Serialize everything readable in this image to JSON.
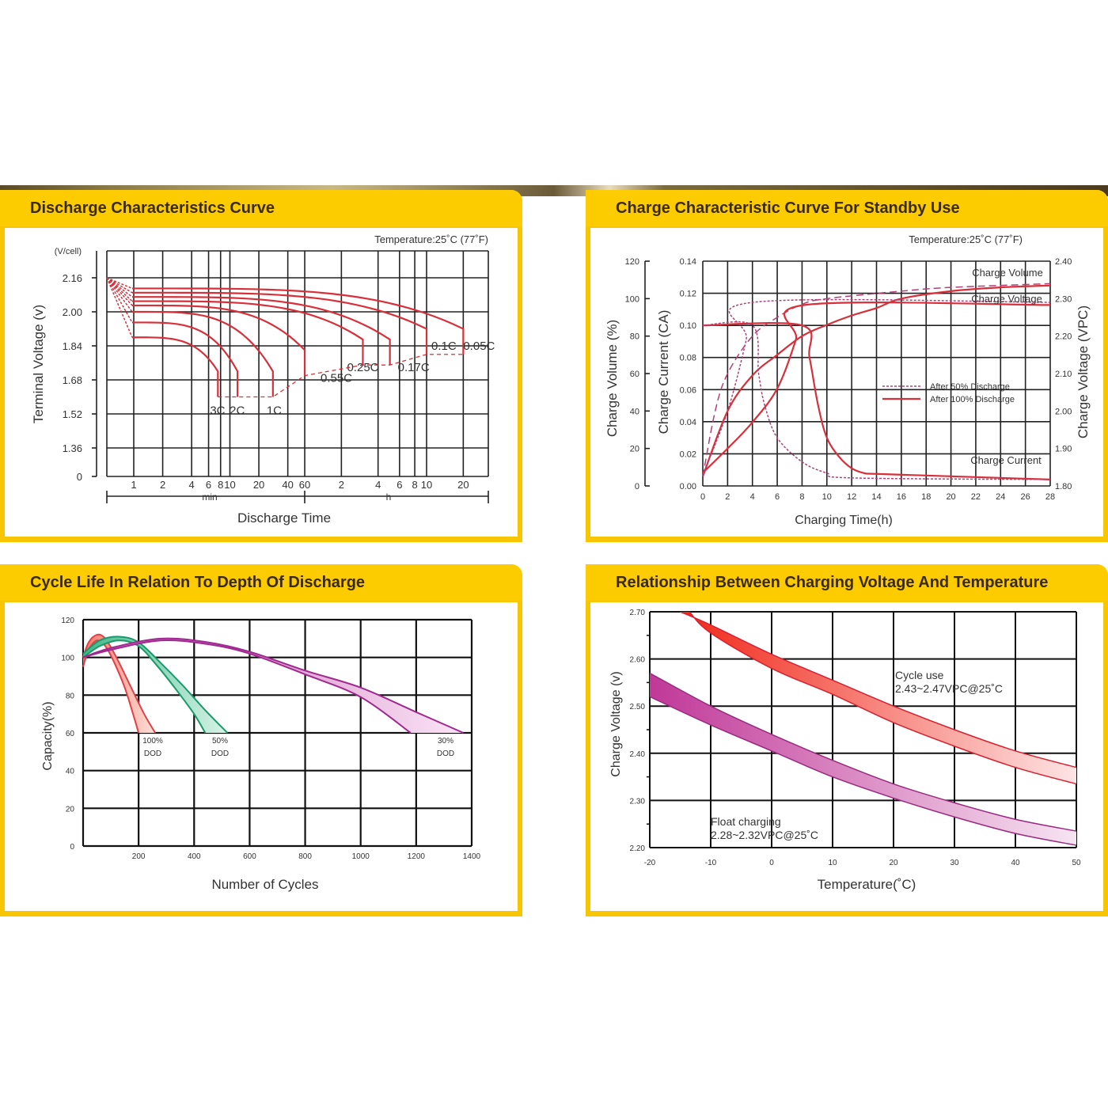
{
  "panels": [
    {
      "title": "Discharge Characteristics Curve"
    },
    {
      "title": "Charge Characteristic Curve For Standby Use"
    },
    {
      "title": "Cycle Life In Relation To Depth Of Discharge"
    },
    {
      "title": "Relationship Between Charging Voltage And Temperature"
    }
  ],
  "chart_data": [
    {
      "type": "line",
      "title": "Discharge Characteristics Curve",
      "annotation": "Temperature:25˚C (77˚F)",
      "ylabel": "Terminal  Voltage  (v)",
      "yunit": "(V/cell)",
      "xlabel": "Discharge  Time",
      "x_groups": [
        "min",
        "h"
      ],
      "x_ticks_min": [
        1,
        2,
        4,
        6,
        8,
        10,
        20,
        40,
        60
      ],
      "x_ticks_h": [
        2,
        4,
        6,
        8,
        10,
        20
      ],
      "y_ticks": [
        2.16,
        2.0,
        1.84,
        1.68,
        1.52,
        1.36,
        0
      ],
      "initial_voltage": 2.16,
      "series": [
        {
          "name": "3C",
          "start_v": 1.88,
          "end_min": 7.5,
          "end_v": 1.6
        },
        {
          "name": "2C",
          "start_v": 1.95,
          "end_min": 12,
          "end_v": 1.6
        },
        {
          "name": "1C",
          "start_v": 2.0,
          "end_min": 28,
          "end_v": 1.6
        },
        {
          "name": "0.55C",
          "start_v": 2.03,
          "end_min": 60,
          "end_v": 1.7
        },
        {
          "name": "0.25C",
          "start_v": 2.05,
          "end_min": 180,
          "end_v": 1.75
        },
        {
          "name": "0.17C",
          "start_v": 2.07,
          "end_min": 300,
          "end_v": 1.75
        },
        {
          "name": "0.1C",
          "start_v": 2.09,
          "end_min": 600,
          "end_v": 1.8
        },
        {
          "name": "0.05C",
          "start_v": 2.11,
          "end_min": 1200,
          "end_v": 1.8
        }
      ],
      "color": "#d8303a"
    },
    {
      "type": "line",
      "title": "Charge Characteristic Curve For Standby Use",
      "annotation": "Temperature:25˚C (77˚F)",
      "xlabel": "Charging Time(h)",
      "ylabel_volume": "Charge  Volume  (%)",
      "ylabel_current": "Charge  Current (CA)",
      "ylabel_voltage": "Charge  Voltage  (VPC)",
      "x_ticks": [
        0,
        2,
        4,
        6,
        8,
        10,
        12,
        14,
        16,
        18,
        20,
        22,
        24,
        26,
        28
      ],
      "volume_ticks": [
        0,
        20,
        40,
        60,
        80,
        100,
        120
      ],
      "current_ticks": [
        "0.00",
        "0.02",
        "0.04",
        "0.06",
        "0.08",
        "0.10",
        "0.12",
        "0.14"
      ],
      "voltage_ticks": [
        "1.80",
        "1.90",
        "2.00",
        "2.10",
        "2.20",
        "2.30",
        "2.40"
      ],
      "curve_labels": [
        "Charge Volume",
        "Charge Voltage",
        "Charge Current"
      ],
      "legend": [
        "After 50% Discharge",
        "After 100% Discharge"
      ],
      "series": [
        {
          "name": "Charge Volume (100%)",
          "axis": "volume",
          "style": "solid",
          "points": [
            [
              0,
              5
            ],
            [
              2,
              40
            ],
            [
              4,
              59
            ],
            [
              6,
              70
            ],
            [
              8,
              80
            ],
            [
              10,
              86
            ],
            [
              12,
              91
            ],
            [
              14,
              95
            ],
            [
              16,
              100
            ],
            [
              20,
              104
            ],
            [
              24,
              106
            ],
            [
              28,
              107
            ]
          ]
        },
        {
          "name": "Charge Volume (50%)",
          "axis": "volume",
          "style": "dashed",
          "points": [
            [
              0,
              5
            ],
            [
              1,
              40
            ],
            [
              2,
              60
            ],
            [
              4,
              80
            ],
            [
              6,
              90
            ],
            [
              8,
              97
            ],
            [
              10,
              100
            ],
            [
              16,
              104
            ],
            [
              20,
              106
            ],
            [
              28,
              108
            ]
          ]
        },
        {
          "name": "Charge Voltage (100%)",
          "axis": "voltage",
          "style": "solid",
          "points": [
            [
              0,
              1.835
            ],
            [
              2,
              1.9
            ],
            [
              4,
              1.97
            ],
            [
              6,
              2.06
            ],
            [
              7.5,
              2.19
            ],
            [
              8.2,
              2.283
            ],
            [
              28,
              2.283
            ]
          ]
        },
        {
          "name": "Charge Voltage (50%)",
          "axis": "voltage",
          "style": "dotted",
          "points": [
            [
              0,
              1.83
            ],
            [
              2,
              2.0
            ],
            [
              3.5,
              2.19
            ],
            [
              4,
              2.29
            ],
            [
              28,
              2.29
            ]
          ]
        },
        {
          "name": "Charge Current (100%)",
          "axis": "current",
          "style": "solid",
          "points": [
            [
              0,
              0.1
            ],
            [
              8,
              0.1
            ],
            [
              8.6,
              0.08
            ],
            [
              9.3,
              0.05
            ],
            [
              10,
              0.03
            ],
            [
              11,
              0.018
            ],
            [
              12,
              0.011
            ],
            [
              13,
              0.008
            ],
            [
              14,
              0.0075
            ],
            [
              20,
              0.006
            ],
            [
              28,
              0.004
            ]
          ]
        },
        {
          "name": "Charge Current (50%)",
          "axis": "current",
          "style": "dotted",
          "points": [
            [
              0,
              0.1
            ],
            [
              4,
              0.1
            ],
            [
              4.5,
              0.07
            ],
            [
              5,
              0.05
            ],
            [
              6,
              0.03
            ],
            [
              8,
              0.015
            ],
            [
              10,
              0.008
            ],
            [
              12,
              0.005
            ],
            [
              28,
              0.004
            ]
          ]
        }
      ],
      "color_100": "#d8303a",
      "color_50": "#b0407a"
    },
    {
      "type": "area",
      "title": "Cycle Life In Relation To Depth Of Discharge",
      "xlabel": "Number of Cycles",
      "ylabel": "Capacity(%)",
      "x_ticks": [
        200,
        400,
        600,
        800,
        1000,
        1200,
        1400
      ],
      "y_ticks": [
        0,
        20,
        40,
        60,
        80,
        100,
        120
      ],
      "xlim": [
        0,
        1400
      ],
      "ylim": [
        0,
        120
      ],
      "series": [
        {
          "name": "100% DOD",
          "label": [
            "100%",
            "DOD"
          ],
          "stroke": "#e04048",
          "fill": "#f7b4a4",
          "upper": [
            [
              0,
              100
            ],
            [
              20,
              108
            ],
            [
              50,
              112
            ],
            [
              80,
              110
            ],
            [
              120,
              100
            ],
            [
              170,
              85
            ],
            [
              220,
              70
            ],
            [
              260,
              60
            ]
          ],
          "lower": [
            [
              0,
              95
            ],
            [
              20,
              104
            ],
            [
              50,
              109
            ],
            [
              80,
              106
            ],
            [
              110,
              98
            ],
            [
              150,
              84
            ],
            [
              180,
              70
            ],
            [
              200,
              60
            ]
          ]
        },
        {
          "name": "50% DOD",
          "label": [
            "50%",
            "DOD"
          ],
          "stroke": "#1a9a6a",
          "fill": "#a8e2c8",
          "upper": [
            [
              0,
              102
            ],
            [
              60,
              109
            ],
            [
              130,
              111
            ],
            [
              200,
              108
            ],
            [
              280,
              97
            ],
            [
              360,
              85
            ],
            [
              440,
              72
            ],
            [
              520,
              60
            ]
          ],
          "lower": [
            [
              0,
              100
            ],
            [
              60,
              106
            ],
            [
              130,
              109
            ],
            [
              200,
              106
            ],
            [
              270,
              95
            ],
            [
              340,
              82
            ],
            [
              400,
              70
            ],
            [
              440,
              60
            ]
          ]
        },
        {
          "name": "30% DOD",
          "label": [
            "30%",
            "DOD"
          ],
          "stroke": "#a02890",
          "fill": "#f0c0ea",
          "upper": [
            [
              0,
              100
            ],
            [
              100,
              105
            ],
            [
              280,
              110
            ],
            [
              450,
              108
            ],
            [
              600,
              103
            ],
            [
              800,
              93
            ],
            [
              1000,
              84
            ],
            [
              1200,
              71
            ],
            [
              1370,
              60
            ]
          ],
          "lower": [
            [
              0,
              100
            ],
            [
              100,
              104
            ],
            [
              280,
              109
            ],
            [
              450,
              107
            ],
            [
              600,
              102
            ],
            [
              800,
              91
            ],
            [
              1000,
              79
            ],
            [
              1180,
              60
            ]
          ]
        }
      ]
    },
    {
      "type": "area",
      "title": "Relationship Between Charging Voltage And Temperature",
      "xlabel": "Temperature(˚C)",
      "ylabel": "Charge Voltage  (v)",
      "x_ticks": [
        -20,
        -10,
        0,
        10,
        20,
        30,
        40,
        50
      ],
      "y_ticks": [
        "2.20",
        "2.30",
        "2.40",
        "2.50",
        "2.60",
        "2.70"
      ],
      "xlim": [
        -20,
        50
      ],
      "ylim": [
        2.2,
        2.7
      ],
      "series": [
        {
          "name": "Cycle use",
          "label": [
            "Cycle use",
            "2.43~2.47VPC@25˚C"
          ],
          "stroke": "#d82030",
          "fill_start": "#f02818",
          "fill_end": "#fde4e4",
          "upper": [
            [
              -15,
              2.7
            ],
            [
              -10,
              2.672
            ],
            [
              0,
              2.61
            ],
            [
              10,
              2.555
            ],
            [
              20,
              2.5
            ],
            [
              30,
              2.45
            ],
            [
              40,
              2.405
            ],
            [
              50,
              2.37
            ]
          ],
          "lower": [
            [
              -13.5,
              2.7
            ],
            [
              -10,
              2.655
            ],
            [
              0,
              2.58
            ],
            [
              10,
              2.525
            ],
            [
              20,
              2.465
            ],
            [
              30,
              2.415
            ],
            [
              40,
              2.37
            ],
            [
              50,
              2.335
            ]
          ]
        },
        {
          "name": "Float charging",
          "label": [
            "Float charging",
            "2.28~2.32VPC@25˚C"
          ],
          "stroke": "#9a2a80",
          "fill_start": "#c03898",
          "fill_end": "#f6e4f2",
          "upper": [
            [
              -20,
              2.57
            ],
            [
              -10,
              2.5
            ],
            [
              0,
              2.44
            ],
            [
              10,
              2.385
            ],
            [
              20,
              2.335
            ],
            [
              30,
              2.295
            ],
            [
              40,
              2.26
            ],
            [
              50,
              2.235
            ]
          ],
          "lower": [
            [
              -20,
              2.52
            ],
            [
              -10,
              2.46
            ],
            [
              0,
              2.405
            ],
            [
              10,
              2.35
            ],
            [
              20,
              2.305
            ],
            [
              30,
              2.265
            ],
            [
              40,
              2.23
            ],
            [
              50,
              2.205
            ]
          ]
        }
      ]
    }
  ]
}
